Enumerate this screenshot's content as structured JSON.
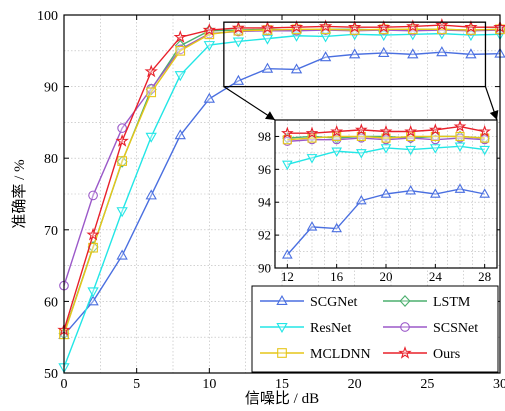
{
  "chart_data": {
    "type": "line",
    "xlabel": "信噪比 / dB",
    "ylabel": "准确率 / %",
    "xlim": [
      0,
      30
    ],
    "ylim": [
      50,
      100
    ],
    "xticks": [
      "0",
      "5",
      "10",
      "15",
      "20",
      "25",
      "30"
    ],
    "yticks": [
      "50",
      "60",
      "70",
      "80",
      "90",
      "100"
    ],
    "grid": true,
    "legend_position": "bottom-right",
    "x": [
      0,
      2,
      4,
      6,
      8,
      10,
      12,
      14,
      16,
      18,
      20,
      22,
      24,
      26,
      28,
      30
    ],
    "series": [
      {
        "name": "SCGNet",
        "color": "#4a6fe0",
        "marker": "triangle-up",
        "values": [
          55.3,
          60.0,
          66.4,
          74.8,
          83.2,
          88.3,
          90.8,
          92.5,
          92.4,
          94.1,
          94.5,
          94.7,
          94.5,
          94.8,
          94.5,
          94.6
        ]
      },
      {
        "name": "LSTM",
        "color": "#4caf6e",
        "marker": "diamond",
        "values": [
          55.5,
          67.6,
          79.5,
          89.6,
          95.7,
          97.8,
          97.9,
          98.0,
          97.9,
          98.0,
          98.0,
          97.9,
          98.0,
          98.0,
          97.9,
          98.0
        ]
      },
      {
        "name": "ResNet",
        "color": "#22e6e6",
        "marker": "triangle-down",
        "values": [
          50.8,
          61.4,
          72.6,
          83.0,
          91.6,
          95.8,
          96.3,
          96.7,
          97.1,
          97.0,
          97.3,
          97.2,
          97.3,
          97.4,
          97.2,
          97.3
        ]
      },
      {
        "name": "SCSNet",
        "color": "#9b59c9",
        "marker": "circle",
        "values": [
          62.2,
          74.8,
          84.2,
          89.7,
          95.2,
          97.4,
          97.7,
          97.8,
          97.8,
          97.9,
          97.8,
          97.9,
          97.8,
          97.9,
          97.8,
          97.9
        ]
      },
      {
        "name": "MCLDNN",
        "color": "#e6c619",
        "marker": "square",
        "values": [
          55.4,
          67.5,
          79.6,
          89.2,
          95.0,
          97.3,
          97.8,
          97.9,
          98.0,
          98.0,
          97.9,
          98.0,
          98.0,
          98.0,
          97.9,
          98.0
        ]
      },
      {
        "name": "Ours",
        "color": "#e8202a",
        "marker": "star",
        "values": [
          56.0,
          69.3,
          82.4,
          92.1,
          96.9,
          97.9,
          98.2,
          98.2,
          98.3,
          98.4,
          98.3,
          98.3,
          98.4,
          98.6,
          98.3,
          98.3
        ]
      }
    ],
    "inset": {
      "xlim": [
        11,
        29
      ],
      "ylim": [
        90,
        99
      ],
      "xticks": [
        "12",
        "16",
        "20",
        "24",
        "28"
      ],
      "yticks": [
        "90",
        "92",
        "94",
        "96",
        "98"
      ]
    }
  }
}
